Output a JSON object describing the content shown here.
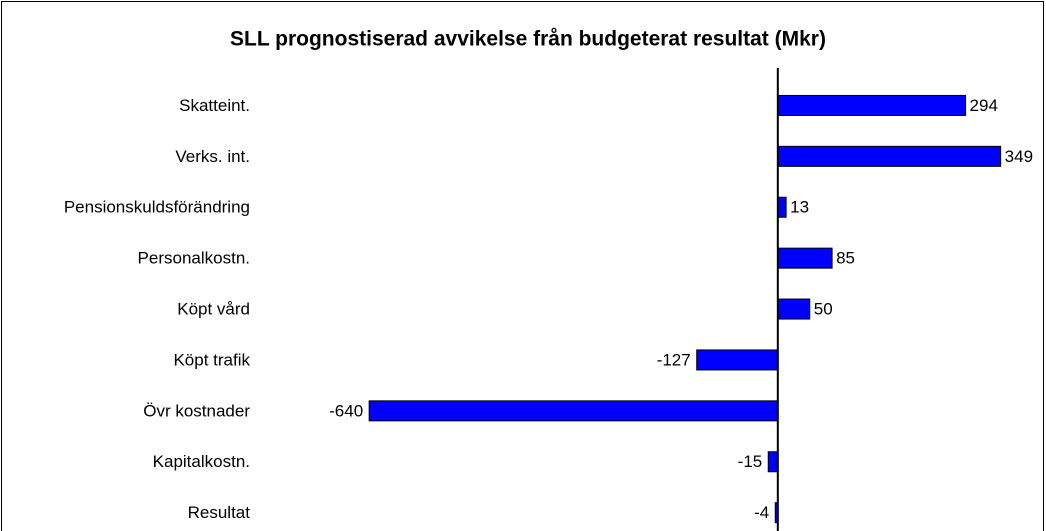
{
  "chart_data": {
    "type": "barh",
    "title": "SLL prognostiserad avvikelse från budgeterat resultat (Mkr)",
    "categories": [
      "Skatteint.",
      "Verks. int.",
      "Pensionskuldsförändring",
      "Personalkostn.",
      "Köpt vård",
      "Köpt trafik",
      "Övr kostnader",
      "Kapitalkostn.",
      "Resultat"
    ],
    "values": [
      294,
      349,
      13,
      85,
      50,
      -127,
      -640,
      -15,
      -4
    ],
    "color": "#0000ff",
    "xlim": [
      -800,
      420
    ]
  }
}
